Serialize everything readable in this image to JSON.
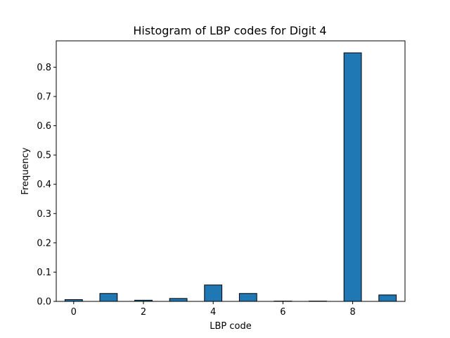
{
  "chart_data": {
    "type": "bar",
    "title": "Histogram of LBP codes for Digit 4",
    "xlabel": "LBP code",
    "ylabel": "Frequency",
    "x": [
      0,
      1,
      2,
      3,
      4,
      5,
      6,
      7,
      8,
      9
    ],
    "values": [
      0.006,
      0.027,
      0.004,
      0.01,
      0.056,
      0.027,
      0.001,
      0.001,
      0.849,
      0.022
    ],
    "xlim": [
      -0.5,
      9.5
    ],
    "ylim": [
      0,
      0.89
    ],
    "xticks": [
      0,
      2,
      4,
      6,
      8
    ],
    "xtick_labels": [
      "0",
      "2",
      "4",
      "6",
      "8"
    ],
    "yticks": [
      0.0,
      0.1,
      0.2,
      0.3,
      0.4,
      0.5,
      0.6,
      0.7,
      0.8
    ],
    "ytick_labels": [
      "0.0",
      "0.1",
      "0.2",
      "0.3",
      "0.4",
      "0.5",
      "0.6",
      "0.7",
      "0.8"
    ],
    "bar_color": "#1f77b4",
    "edge_color": "#000000",
    "grid": false,
    "legend": false
  }
}
